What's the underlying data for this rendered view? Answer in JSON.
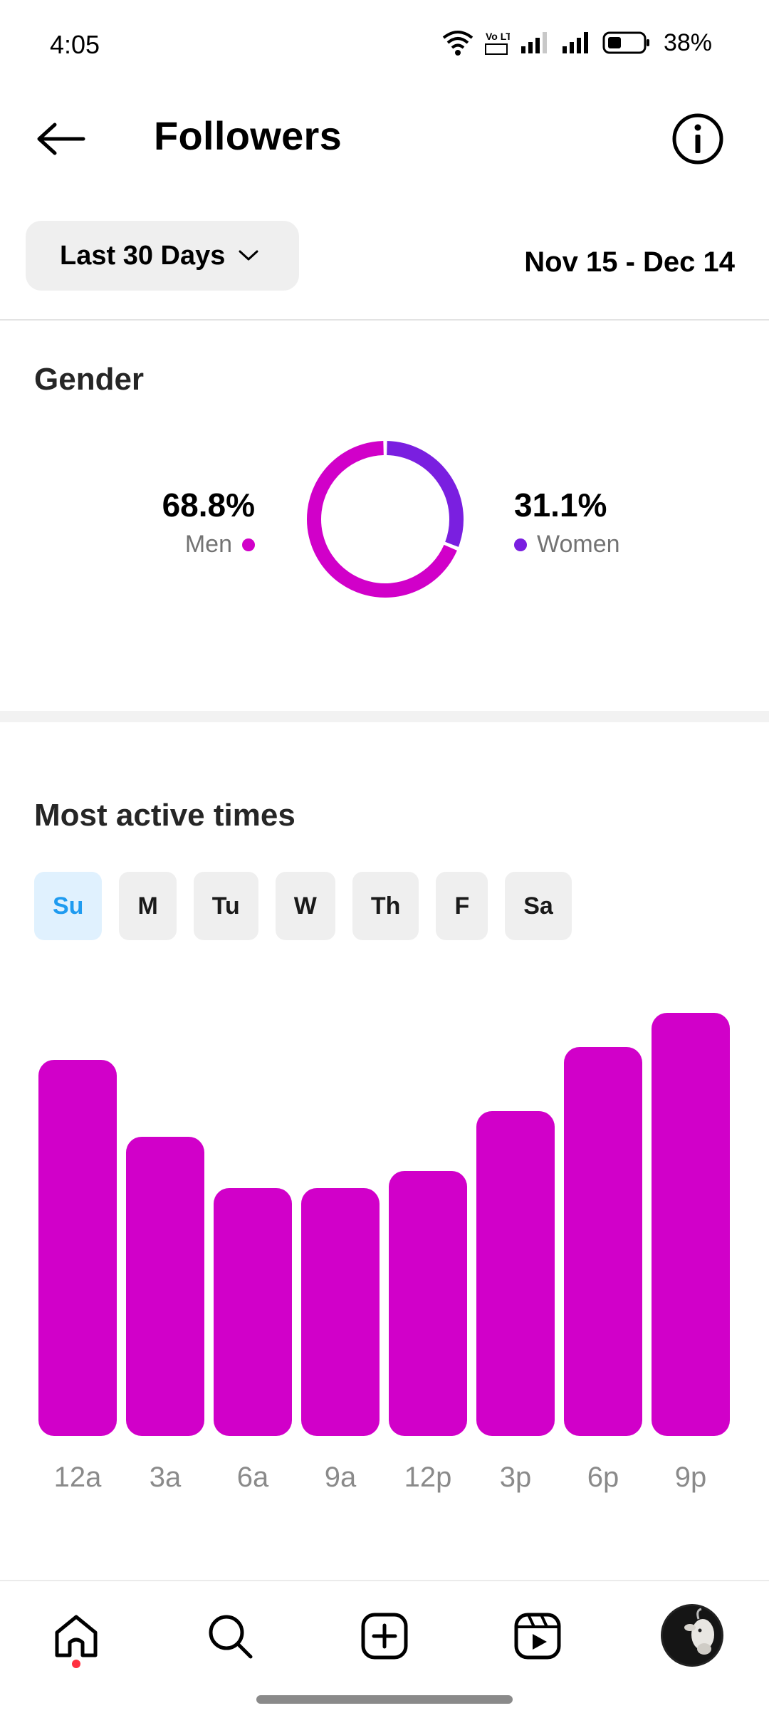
{
  "status_bar": {
    "time": "4:05",
    "battery": "38%",
    "volte": "Vo LTE"
  },
  "header": {
    "title": "Followers"
  },
  "filter": {
    "range_label": "Last 30 Days",
    "date_range": "Nov 15 - Dec 14"
  },
  "gender": {
    "title": "Gender",
    "men": {
      "pct": "68.8%",
      "label": "Men",
      "value": 68.8,
      "color": "#d100c9"
    },
    "women": {
      "pct": "31.1%",
      "label": "Women",
      "value": 31.1,
      "color": "#7a1fe0"
    }
  },
  "active_times": {
    "title": "Most active times",
    "days": [
      "Su",
      "M",
      "Tu",
      "W",
      "Th",
      "F",
      "Sa"
    ],
    "selected_day": "Su"
  },
  "chart_data": {
    "type": "bar",
    "categories": [
      "12a",
      "3a",
      "6a",
      "9a",
      "12p",
      "3p",
      "6p",
      "9p"
    ],
    "values": [
      88,
      70,
      58,
      58,
      62,
      76,
      91,
      99
    ],
    "ylim": [
      0,
      100
    ],
    "color": "#d100c9",
    "grid": false
  },
  "nav": {
    "items": [
      "home-icon",
      "search-icon",
      "create-icon",
      "reels-icon",
      "profile-avatar"
    ]
  }
}
